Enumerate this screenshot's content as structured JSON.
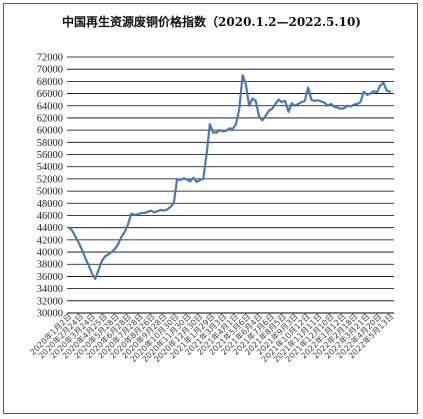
{
  "chart_data": {
    "type": "line",
    "title": "中国再生资源废铜价格指数（2020.1.2—2022.5.10)",
    "xlabel": "",
    "ylabel": "",
    "ylim": [
      30000,
      72000
    ],
    "yticks": [
      30000,
      32000,
      34000,
      36000,
      38000,
      40000,
      42000,
      44000,
      46000,
      48000,
      50000,
      52000,
      54000,
      56000,
      58000,
      60000,
      62000,
      64000,
      66000,
      68000,
      70000,
      72000
    ],
    "grid": true,
    "legend": "none",
    "line_color": "#4a78b4",
    "xticks": [
      "2020年1月2日",
      "2020年2月24日",
      "2020年3月24日",
      "2020年4月25日",
      "2020年5月28日",
      "2020年6月28日",
      "2020年7月28日",
      "2020年8月26日",
      "2020年9月28日",
      "2020年10月30日",
      "2020年11月30日",
      "2020年12月30日",
      "2021年1月29日",
      "2021年3月3日",
      "2021年4月1日",
      "2021年5月6日",
      "2021年6月4日",
      "2021年7月6日",
      "2021年8月5日",
      "2021年9月3日",
      "2021年10月12日",
      "2021年11月11日",
      "2021年12月10日",
      "2022年1月12日",
      "2022年2月18日",
      "2022年3月21日",
      "2022年4月20日",
      "2022年5月13日"
    ],
    "series": [
      {
        "values": [
          44000,
          43500,
          42500,
          41500,
          40300,
          39000,
          37800,
          36500,
          35600,
          37000,
          38500,
          39300,
          39600,
          40000,
          40500,
          41300,
          42500,
          43300,
          44500,
          46300,
          46100,
          46200,
          46400,
          46400,
          46600,
          46800,
          46500,
          46700,
          46900,
          46800,
          47000,
          47400,
          48000,
          52000,
          51800,
          52100,
          51900,
          51600,
          52200,
          51500,
          51800,
          52000,
          56000,
          61000,
          59600,
          59600,
          60000,
          59800,
          59900,
          60300,
          60200,
          61000,
          63500,
          69000,
          67500,
          64000,
          65200,
          64800,
          62300,
          61600,
          62300,
          63200,
          63500,
          64300,
          65000,
          64600,
          64800,
          63000,
          64400,
          64000,
          64300,
          64600,
          64800,
          67000,
          65000,
          64800,
          64900,
          64700,
          64500,
          64000,
          64300,
          63800,
          63700,
          63500,
          63600,
          64000,
          63900,
          64200,
          64300,
          64600,
          66300,
          65800,
          66000,
          66400,
          66200,
          67300,
          67800,
          66500,
          66300
        ]
      }
    ]
  }
}
